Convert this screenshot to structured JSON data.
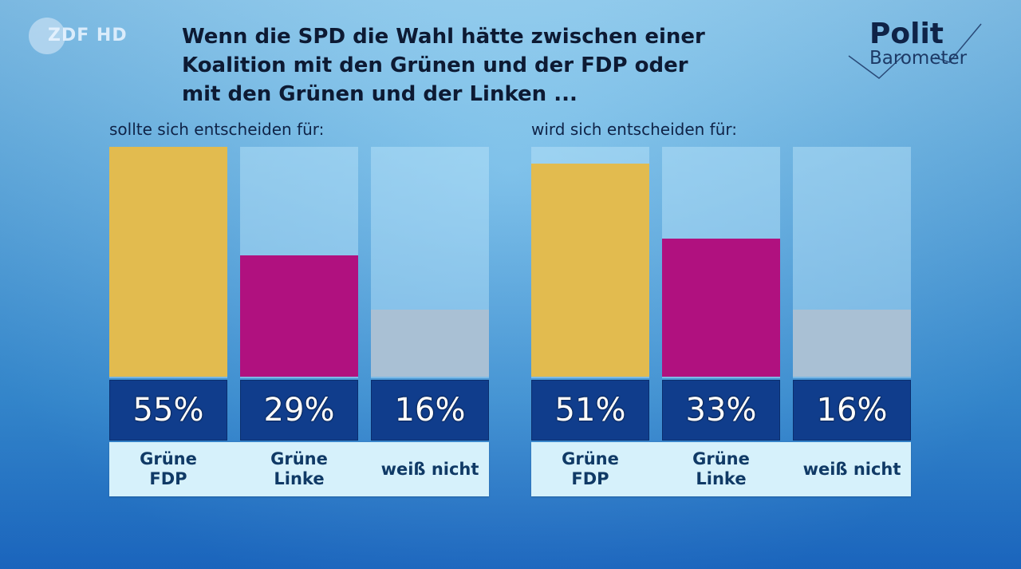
{
  "channel_logo": "ZDF HD",
  "brand": {
    "line1": "Polit",
    "line2": "Barometer"
  },
  "headline": [
    "Wenn die SPD die Wahl hätte zwischen einer",
    "Koalition mit den Grünen und der FDP oder",
    "mit den Grünen und der Linken ..."
  ],
  "colors": {
    "gruene_fdp": "#e2bb4f",
    "gruene_linke": "#b0117f",
    "weiss_nicht": "#a9c0d4",
    "value_box": "#103d8c"
  },
  "chart_data": [
    {
      "type": "bar",
      "title": "sollte sich entscheiden für:",
      "categories": [
        [
          "Grüne",
          "FDP"
        ],
        [
          "Grüne",
          "Linke"
        ],
        [
          "weiß nicht"
        ]
      ],
      "values": [
        55,
        29,
        16
      ],
      "value_labels": [
        "55%",
        "29%",
        "16%"
      ],
      "unit": "%",
      "ylim": [
        0,
        55
      ]
    },
    {
      "type": "bar",
      "title": "wird sich entscheiden für:",
      "categories": [
        [
          "Grüne",
          "FDP"
        ],
        [
          "Grüne",
          "Linke"
        ],
        [
          "weiß nicht"
        ]
      ],
      "values": [
        51,
        33,
        16
      ],
      "value_labels": [
        "51%",
        "33%",
        "16%"
      ],
      "unit": "%",
      "ylim": [
        0,
        55
      ]
    }
  ]
}
